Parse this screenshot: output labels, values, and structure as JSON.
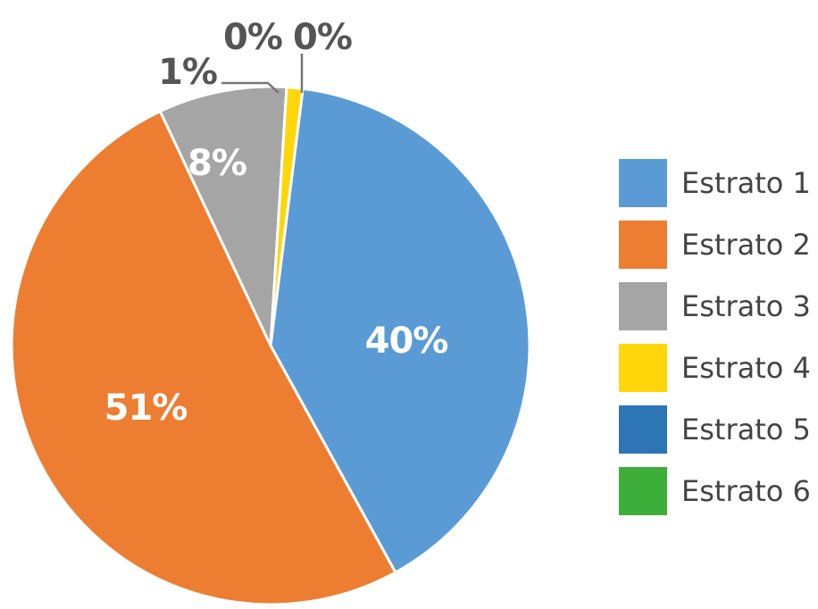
{
  "chart_data": {
    "type": "pie",
    "title": "",
    "slices": [
      {
        "name": "Estrato 1",
        "value": 40,
        "label": "40%",
        "color": "#5B9BD5"
      },
      {
        "name": "Estrato 2",
        "value": 51,
        "label": "51%",
        "color": "#ED7D31"
      },
      {
        "name": "Estrato 3",
        "value": 8,
        "label": "8%",
        "color": "#A5A5A5"
      },
      {
        "name": "Estrato 4",
        "value": 1,
        "label": "1%",
        "color": "#FFD60A"
      },
      {
        "name": "Estrato 5",
        "value": 0,
        "label": "0%",
        "color": "#2E75B6"
      },
      {
        "name": "Estrato 6",
        "value": 0,
        "label": "0%",
        "color": "#3DAE3A"
      }
    ],
    "legend_position": "right"
  }
}
